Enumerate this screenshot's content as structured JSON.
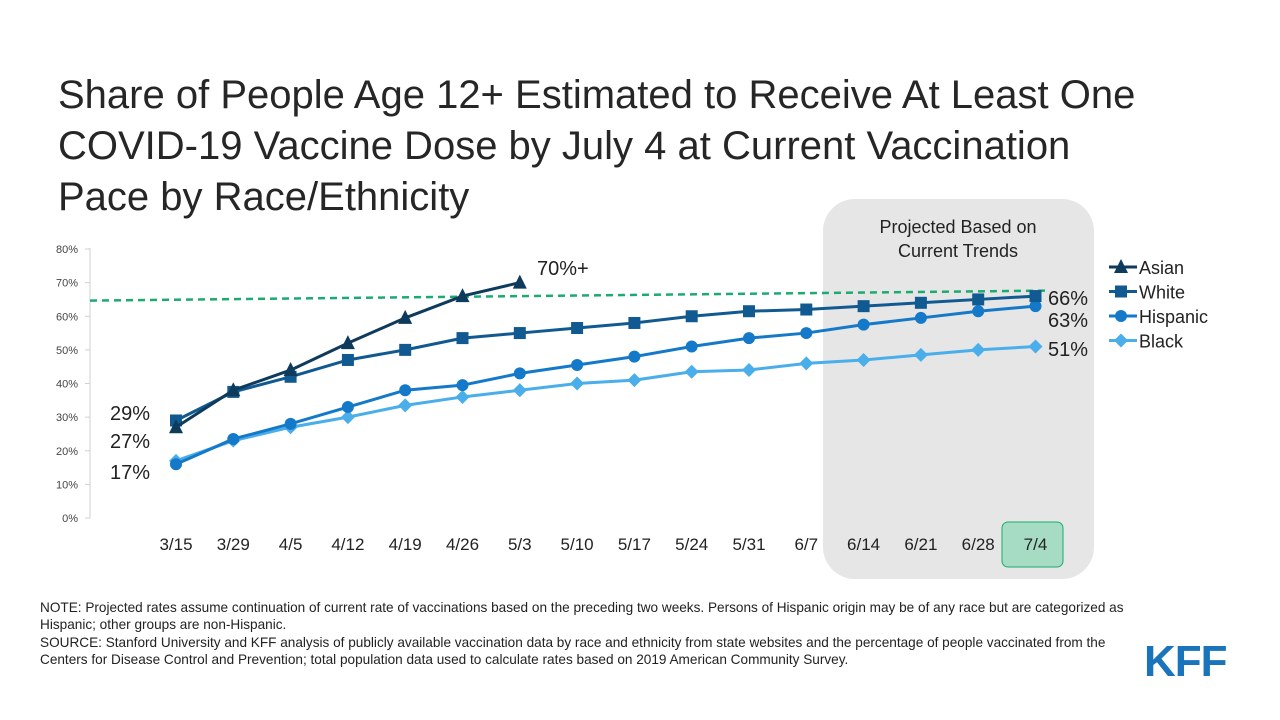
{
  "title_lines": [
    "Share of People Age 12+ Estimated to Receive At Least One",
    "COVID-19 Vaccine Dose by July 4 at Current Vaccination",
    "Pace by Race/Ethnicity"
  ],
  "projection_box_lines": [
    "Projected Based on",
    "Current Trends"
  ],
  "target_label": "70%+",
  "notes": {
    "note": "NOTE: Projected rates assume continuation of current rate of vaccinations based on the preceding two weeks. Persons of Hispanic origin may be of any race but are categorized as Hispanic; other groups are non-Hispanic.",
    "source": "SOURCE: Stanford University and KFF analysis of publicly available vaccination data by race and ethnicity from state websites and the percentage of people vaccinated from the Centers for Disease Control and Prevention; total population data used to calculate rates based on 2019 American Community Survey."
  },
  "logo": "KFF",
  "colors": {
    "asian": "#0e3a5c",
    "white": "#115a91",
    "hispanic": "#1479c9",
    "black": "#4aaeea",
    "target_line": "#1aab72",
    "projection_box": "#e6e6e6",
    "highlight_box": "#a6dcc4"
  },
  "chart_data": {
    "type": "line",
    "categories": [
      "3/15",
      "3/29",
      "4/5",
      "4/12",
      "4/19",
      "4/26",
      "5/3",
      "5/10",
      "5/17",
      "5/24",
      "5/31",
      "6/7",
      "6/14",
      "6/21",
      "6/28",
      "7/4"
    ],
    "ylim": [
      0,
      80
    ],
    "yticks": [
      "0%",
      "10%",
      "20%",
      "30%",
      "40%",
      "50%",
      "60%",
      "70%",
      "80%"
    ],
    "target_value": 70,
    "projected_from": "6/14",
    "highlighted_category": "7/4",
    "series": [
      {
        "name": "Asian",
        "marker": "triangle",
        "color_key": "asian",
        "values": [
          27,
          38,
          44,
          52,
          59.5,
          66,
          70,
          null,
          null,
          null,
          null,
          null,
          null,
          null,
          null,
          null
        ]
      },
      {
        "name": "White",
        "marker": "square",
        "color_key": "white",
        "values": [
          29,
          37.5,
          42,
          47,
          50,
          53.5,
          55,
          56.5,
          58,
          60,
          61.5,
          62,
          63,
          64,
          65,
          66
        ]
      },
      {
        "name": "Hispanic",
        "marker": "circle",
        "color_key": "hispanic",
        "values": [
          16,
          23.5,
          28,
          33,
          38,
          39.5,
          43,
          45.5,
          48,
          51,
          53.5,
          55,
          57.5,
          59.5,
          61.5,
          63
        ]
      },
      {
        "name": "Black",
        "marker": "diamond",
        "color_key": "black",
        "values": [
          17,
          23,
          27,
          30,
          33.5,
          36,
          38,
          40,
          41,
          43.5,
          44,
          46,
          47,
          48.5,
          50,
          51
        ]
      }
    ],
    "start_labels": [
      "29%",
      "27%",
      "17%"
    ],
    "end_labels": [
      "66%",
      "63%",
      "51%"
    ]
  }
}
